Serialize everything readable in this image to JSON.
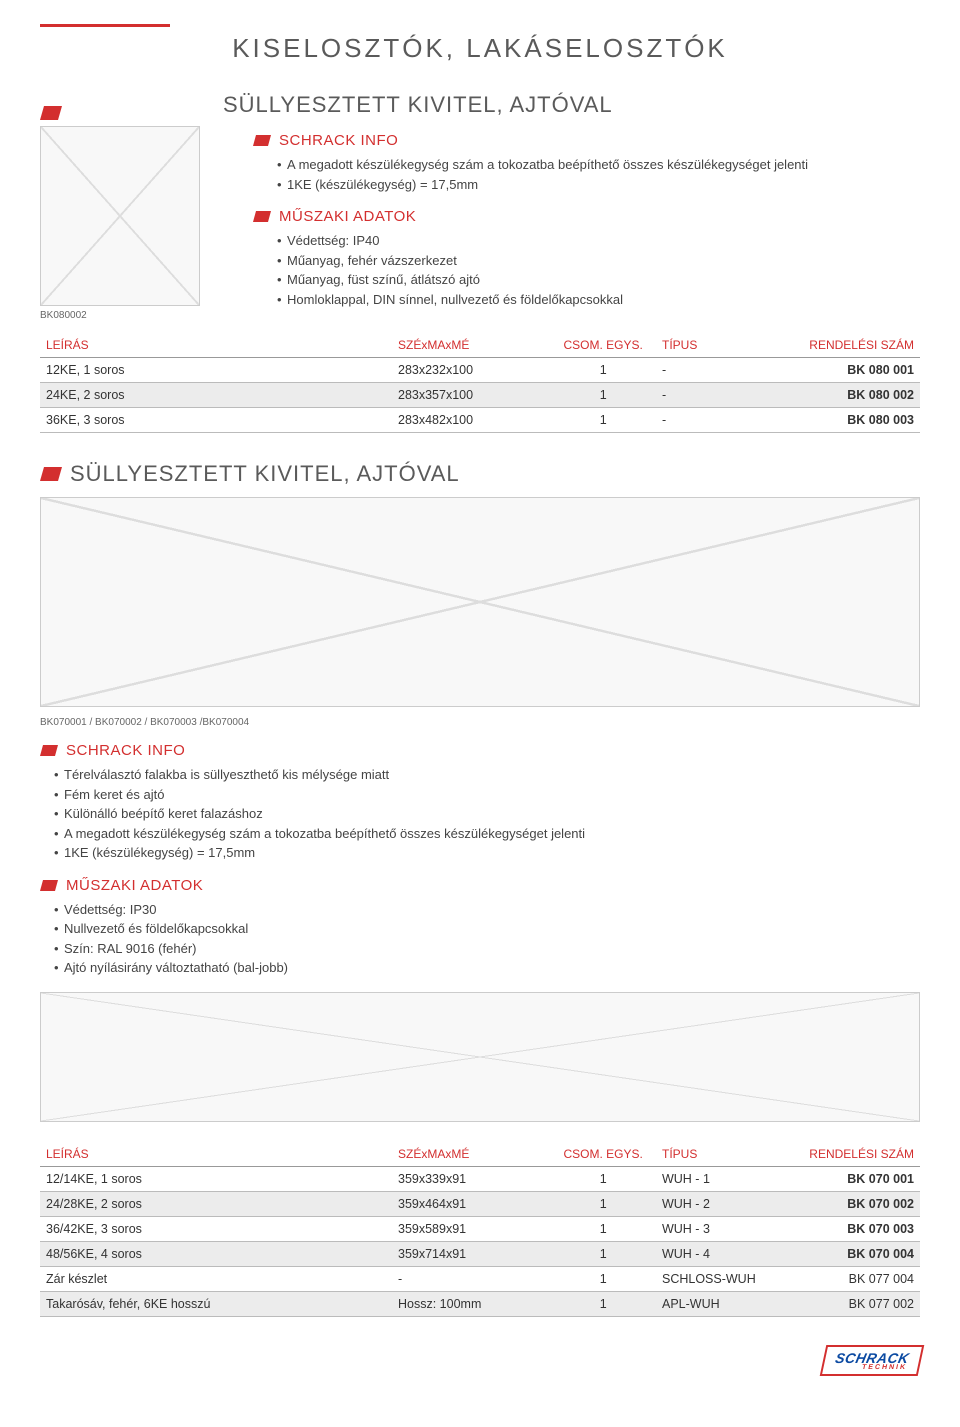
{
  "page": {
    "title": "KISELOSZTÓK, LAKÁSELOSZTÓK",
    "accent_color": "#d32f2f",
    "text_color": "#5a5a5a"
  },
  "section1": {
    "heading": "SÜLLYESZTETT KIVITEL, AJTÓVAL",
    "image_caption": "BK080002",
    "info_heading": "SCHRACK INFO",
    "info_items": [
      "A megadott készülékegység szám a tokozatba beépíthető összes készülékegységet jelenti",
      "1KE (készülékegység) = 17,5mm"
    ],
    "tech_heading": "MŰSZAKI ADATOK",
    "tech_items": [
      "Védettség: IP40",
      "Műanyag, fehér vázszerkezet",
      "Műanyag, füst színű, átlátszó ajtó",
      "Homloklappal, DIN sínnel, nullvezető és földelőkapcsokkal"
    ],
    "table": {
      "headers": {
        "desc": "LEÍRÁS",
        "dim": "SZÉxMAxMÉ",
        "pack": "CSOM. EGYS.",
        "type": "TÍPUS",
        "code": "RENDELÉSI SZÁM"
      },
      "rows": [
        {
          "desc": "12KE, 1 soros",
          "dim": "283x232x100",
          "pack": "1",
          "type": "-",
          "code": "BK 080 001",
          "shaded": false,
          "bold_code": true
        },
        {
          "desc": "24KE, 2 soros",
          "dim": "283x357x100",
          "pack": "1",
          "type": "-",
          "code": "BK 080 002",
          "shaded": true,
          "bold_code": true
        },
        {
          "desc": "36KE, 3 soros",
          "dim": "283x482x100",
          "pack": "1",
          "type": "-",
          "code": "BK 080 003",
          "shaded": false,
          "bold_code": true
        }
      ]
    }
  },
  "section2": {
    "heading": "SÜLLYESZTETT KIVITEL, AJTÓVAL",
    "image_caption": "BK070001 / BK070002 / BK070003 /BK070004",
    "info_heading": "SCHRACK INFO",
    "info_items": [
      "Térelválasztó falakba is süllyeszthető kis mélysége miatt",
      "Fém keret és ajtó",
      "Különálló beépítő keret falazáshoz",
      "A megadott készülékegység szám a tokozatba beépíthető összes készülékegységet jelenti",
      "1KE (készülékegység) = 17,5mm"
    ],
    "tech_heading": "MŰSZAKI ADATOK",
    "tech_items": [
      "Védettség: IP30",
      "Nullvezető és földelőkapcsokkal",
      "Szín: RAL 9016 (fehér)",
      "Ajtó nyílásirány változtatható (bal-jobb)"
    ],
    "table": {
      "headers": {
        "desc": "LEÍRÁS",
        "dim": "SZÉxMAxMÉ",
        "pack": "CSOM. EGYS.",
        "type": "TÍPUS",
        "code": "RENDELÉSI SZÁM"
      },
      "rows": [
        {
          "desc": "12/14KE, 1 soros",
          "dim": "359x339x91",
          "pack": "1",
          "type": "WUH - 1",
          "code": "BK 070 001",
          "shaded": false,
          "bold_code": true
        },
        {
          "desc": "24/28KE, 2 soros",
          "dim": "359x464x91",
          "pack": "1",
          "type": "WUH - 2",
          "code": "BK 070 002",
          "shaded": true,
          "bold_code": true
        },
        {
          "desc": "36/42KE, 3 soros",
          "dim": "359x589x91",
          "pack": "1",
          "type": "WUH - 3",
          "code": "BK 070 003",
          "shaded": false,
          "bold_code": true
        },
        {
          "desc": "48/56KE, 4 soros",
          "dim": "359x714x91",
          "pack": "1",
          "type": "WUH - 4",
          "code": "BK 070 004",
          "shaded": true,
          "bold_code": true
        },
        {
          "desc": "Zár készlet",
          "dim": "-",
          "pack": "1",
          "type": "SCHLOSS-WUH",
          "code": "BK 077 004",
          "shaded": false,
          "bold_code": false
        },
        {
          "desc": "Takarósáv, fehér, 6KE hosszú",
          "dim": "Hossz: 100mm",
          "pack": "1",
          "type": "APL-WUH",
          "code": "BK 077 002",
          "shaded": true,
          "bold_code": false
        }
      ]
    }
  },
  "footer": {
    "brand": "SCHRACK",
    "sub": "TECHNIK"
  }
}
